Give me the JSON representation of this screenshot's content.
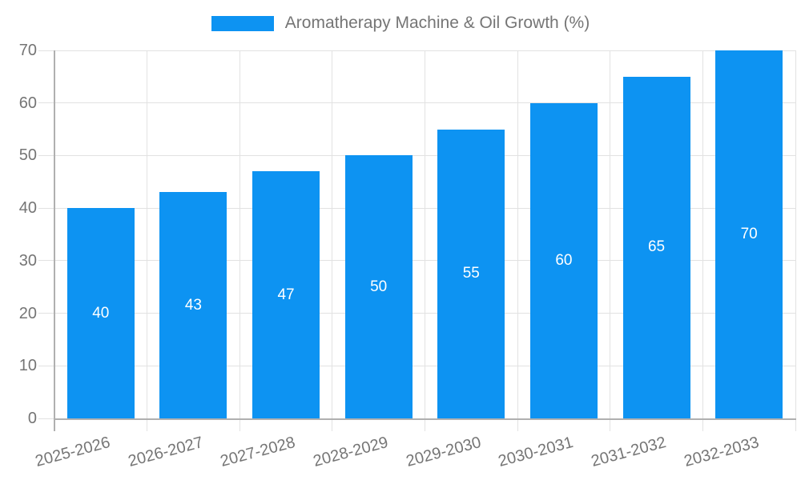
{
  "legend": {
    "label": "Aromatherapy Machine & Oil Growth (%)"
  },
  "chart_data": {
    "type": "bar",
    "title": "Aromatherapy Machine & Oil Growth (%)",
    "categories": [
      "2025-2026",
      "2026-2027",
      "2027-2028",
      "2028-2029",
      "2029-2030",
      "2030-2031",
      "2031-2032",
      "2032-2033"
    ],
    "series": [
      {
        "name": "Aromatherapy Machine & Oil Growth (%)",
        "values": [
          40,
          43,
          47,
          50,
          55,
          60,
          65,
          70
        ]
      }
    ],
    "data_labels_visible": true,
    "xlabel": "",
    "ylabel": "",
    "ylim": [
      0,
      70
    ],
    "yticks": [
      0,
      10,
      20,
      30,
      40,
      50,
      60,
      70
    ],
    "grid": true,
    "legend_position": "top-center",
    "x_label_rotation_deg": -15,
    "colors": {
      "bar": "#0d93f2",
      "data_label": "#ffffff",
      "axis_text": "#757575",
      "grid_line": "#e2e2e2",
      "axis_line": "#b0b0b0",
      "background": "#ffffff"
    }
  }
}
